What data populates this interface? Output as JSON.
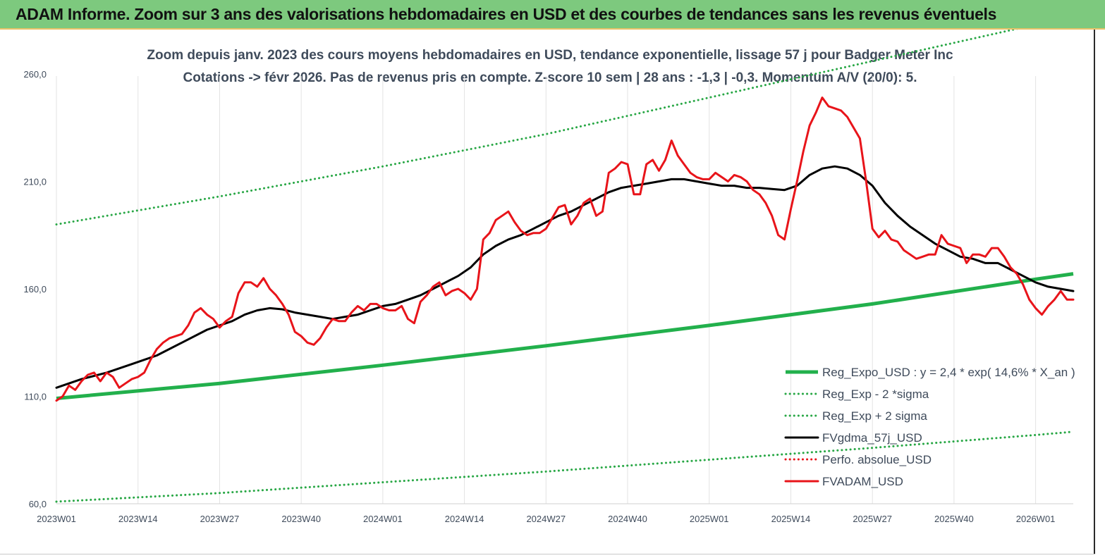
{
  "banner": {
    "title": "ADAM Informe. Zoom sur 3 ans des valorisations hebdomadaires en USD et des courbes de tendances sans les revenus éventuels"
  },
  "colors": {
    "banner_bg": "#7dc97e",
    "trend": "#22b04c",
    "sigma_band": "#28a745",
    "smoothed": "#000000",
    "price": "#e8141a",
    "perf": "#e8141a"
  },
  "chart_data": {
    "type": "line",
    "title": "Zoom depuis janv. 2023 des cours moyens hebdomadaires en USD, tendance exponentielle, lissage 57 j pour Badger Meter Inc",
    "subtitle": "Cotations -> févr 2026.  Pas de revenus pris en compte. Z-score 10 sem  | 28 ans : -1,3  | -0,3. Momentum A/V (20/0): 5.",
    "xlabel": "",
    "ylabel": "",
    "ylim": [
      60,
      280
    ],
    "yticks": [
      "60,0",
      "110,0",
      "160,0",
      "210,0",
      "260,0"
    ],
    "ytick_values": [
      60,
      110,
      160,
      210,
      260
    ],
    "xlim": [
      0,
      162
    ],
    "xticks": [
      "2023W01",
      "2023W14",
      "2023W27",
      "2023W40",
      "2024W01",
      "2024W14",
      "2024W27",
      "2024W40",
      "2025W01",
      "2025W14",
      "2025W27",
      "2025W40",
      "2026W01"
    ],
    "xtick_values": [
      0,
      13,
      26,
      39,
      52,
      65,
      78,
      91,
      104,
      117,
      130,
      143,
      156
    ],
    "grid": "vertical",
    "legend_position": "bottom-right",
    "series": [
      {
        "name": "Reg_Expo_USD : y = 2,4 * exp( 14,6% *  X_an )",
        "style": "solid-thick",
        "x": [
          0,
          26,
          52,
          78,
          104,
          130,
          156,
          162
        ],
        "y": [
          109,
          116,
          124.5,
          133.5,
          143,
          153,
          164.5,
          167
        ]
      },
      {
        "name": "Reg_Exp - 2 *sigma",
        "style": "dotted",
        "x": [
          0,
          26,
          52,
          78,
          104,
          130,
          156,
          162
        ],
        "y": [
          61,
          65,
          70,
          75,
          80.5,
          86,
          92,
          93.5
        ]
      },
      {
        "name": "Reg_Exp + 2 sigma",
        "style": "dotted",
        "x": [
          0,
          26,
          52,
          78,
          104,
          130,
          156,
          162
        ],
        "y": [
          190,
          203,
          217,
          232,
          249,
          266,
          283,
          287
        ]
      },
      {
        "name": "FVgdma_57j_USD",
        "style": "solid",
        "x": [
          0,
          4,
          8,
          12,
          16,
          20,
          24,
          28,
          30,
          32,
          34,
          36,
          38,
          40,
          42,
          44,
          46,
          48,
          50,
          52,
          54,
          56,
          58,
          60,
          62,
          64,
          66,
          68,
          70,
          72,
          74,
          76,
          78,
          80,
          82,
          84,
          86,
          88,
          90,
          92,
          94,
          96,
          98,
          100,
          102,
          104,
          106,
          108,
          110,
          112,
          114,
          116,
          118,
          120,
          122,
          124,
          126,
          128,
          130,
          132,
          134,
          136,
          138,
          140,
          142,
          144,
          146,
          148,
          150,
          152,
          154,
          156,
          158,
          160,
          162
        ],
        "y": [
          114,
          118,
          121,
          125,
          129,
          135,
          141,
          145,
          148,
          150,
          151,
          150.5,
          149,
          148,
          147,
          146,
          147,
          148,
          150,
          152,
          153,
          155,
          157,
          160,
          163,
          166,
          170,
          176,
          180,
          183,
          185,
          188,
          191,
          194,
          196,
          199,
          202,
          205,
          207,
          208,
          209,
          210,
          211,
          211,
          210,
          209,
          208,
          208,
          207,
          207,
          206.5,
          206,
          208,
          213,
          216,
          217,
          216,
          213,
          208,
          200,
          194,
          189,
          185,
          181,
          178,
          175,
          174,
          172,
          172,
          169,
          166,
          163,
          161,
          160,
          159
        ]
      },
      {
        "name": "Perfo. absolue_USD",
        "style": "dotted",
        "x": [],
        "y": []
      },
      {
        "name": "FVADAM_USD",
        "style": "solid",
        "x": [
          0,
          1,
          2,
          3,
          4,
          5,
          6,
          7,
          8,
          9,
          10,
          11,
          12,
          13,
          14,
          15,
          16,
          17,
          18,
          19,
          20,
          21,
          22,
          23,
          24,
          25,
          26,
          27,
          28,
          29,
          30,
          31,
          32,
          33,
          34,
          35,
          36,
          37,
          38,
          39,
          40,
          41,
          42,
          43,
          44,
          45,
          46,
          47,
          48,
          49,
          50,
          51,
          52,
          53,
          54,
          55,
          56,
          57,
          58,
          59,
          60,
          61,
          62,
          63,
          64,
          65,
          66,
          67,
          68,
          69,
          70,
          71,
          72,
          73,
          74,
          75,
          76,
          77,
          78,
          79,
          80,
          81,
          82,
          83,
          84,
          85,
          86,
          87,
          88,
          89,
          90,
          91,
          92,
          93,
          94,
          95,
          96,
          97,
          98,
          99,
          100,
          101,
          102,
          103,
          104,
          105,
          106,
          107,
          108,
          109,
          110,
          111,
          112,
          113,
          114,
          115,
          116,
          117,
          118,
          119,
          120,
          121,
          122,
          123,
          124,
          125,
          126,
          127,
          128,
          129,
          130,
          131,
          132,
          133,
          134,
          135,
          136,
          137,
          138,
          139,
          140,
          141,
          142,
          143,
          144,
          145,
          146,
          147,
          148,
          149,
          150,
          151,
          152,
          153,
          154,
          155,
          156,
          157,
          158,
          159,
          160,
          161,
          162
        ],
        "y": [
          108,
          110,
          115,
          113,
          117,
          120,
          121,
          117,
          121,
          119,
          114,
          116,
          118,
          119,
          121,
          127,
          132,
          135,
          137,
          138,
          139,
          143,
          149,
          151,
          148,
          146,
          142,
          145,
          147,
          158,
          163,
          163,
          161,
          165,
          160,
          157,
          153,
          148,
          140,
          138,
          135,
          134,
          137,
          142,
          146,
          145,
          145,
          149,
          152,
          150,
          153,
          153,
          151,
          150,
          150,
          152,
          146,
          144,
          154,
          157,
          161,
          163,
          157,
          159,
          160,
          158,
          155,
          160,
          183,
          186,
          192,
          194,
          196,
          191,
          187,
          185,
          186,
          186,
          188,
          193,
          198,
          199,
          190,
          194,
          200,
          202,
          194,
          196,
          214,
          216,
          219,
          218,
          204,
          204,
          218,
          220,
          215,
          220,
          229,
          222,
          218,
          214,
          212,
          211,
          211,
          214,
          212,
          210,
          213,
          212,
          210,
          206,
          204,
          200,
          194,
          185,
          183,
          197,
          210,
          224,
          236,
          242,
          249,
          245,
          244,
          243,
          240,
          235,
          230,
          210,
          188,
          184,
          187,
          183,
          182,
          178,
          176,
          174,
          175,
          176,
          176,
          185,
          181,
          180,
          179,
          172,
          176,
          176,
          175,
          179,
          179,
          175,
          170,
          167,
          162,
          155,
          151,
          148,
          152,
          155,
          159,
          155,
          155
        ]
      }
    ]
  }
}
